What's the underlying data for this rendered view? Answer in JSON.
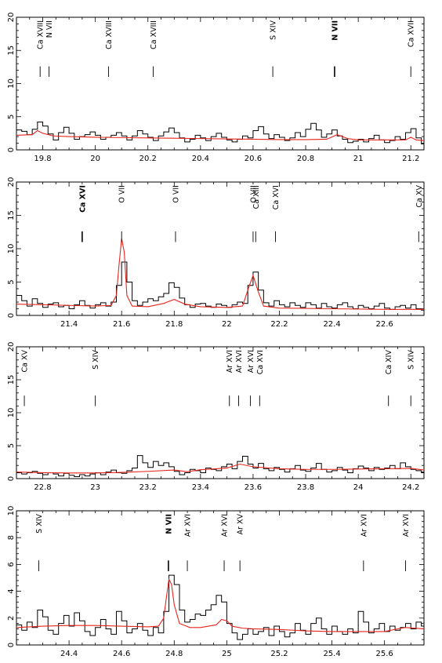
{
  "chart_data": [
    {
      "type": "line",
      "panel": 1,
      "xlim": [
        19.7,
        21.25
      ],
      "ylim": [
        0,
        20
      ],
      "xticks": [
        19.8,
        20,
        20.2,
        20.4,
        20.6,
        20.8,
        21,
        21.2
      ],
      "yticks": [
        0,
        5,
        10,
        15,
        20
      ],
      "grid": false,
      "series": [
        {
          "style": "histogram-black",
          "x": [
            19.7,
            19.72,
            19.74,
            19.76,
            19.78,
            19.8,
            19.82,
            19.84,
            19.86,
            19.88,
            19.9,
            19.92,
            19.94,
            19.96,
            19.98,
            20.0,
            20.02,
            20.04,
            20.06,
            20.08,
            20.1,
            20.12,
            20.14,
            20.16,
            20.18,
            20.2,
            20.22,
            20.24,
            20.26,
            20.28,
            20.3,
            20.32,
            20.34,
            20.36,
            20.38,
            20.4,
            20.42,
            20.44,
            20.46,
            20.48,
            20.5,
            20.52,
            20.54,
            20.56,
            20.58,
            20.6,
            20.62,
            20.64,
            20.66,
            20.68,
            20.7,
            20.72,
            20.74,
            20.76,
            20.78,
            20.8,
            20.82,
            20.84,
            20.86,
            20.88,
            20.9,
            20.92,
            20.94,
            20.96,
            20.98,
            21.0,
            21.02,
            21.04,
            21.06,
            21.08,
            21.1,
            21.12,
            21.14,
            21.16,
            21.18,
            21.2,
            21.22,
            21.24
          ],
          "y": [
            3.0,
            2.8,
            2.3,
            3.1,
            4.2,
            3.6,
            2.4,
            1.5,
            2.6,
            3.4,
            2.5,
            1.6,
            2.0,
            2.3,
            2.7,
            2.2,
            1.6,
            1.9,
            2.2,
            2.6,
            2.1,
            1.5,
            2.1,
            2.9,
            2.4,
            1.9,
            1.4,
            2.1,
            2.7,
            3.3,
            2.6,
            1.8,
            1.2,
            1.6,
            2.2,
            1.8,
            1.4,
            2.0,
            2.5,
            1.9,
            1.5,
            1.2,
            1.6,
            2.1,
            1.8,
            2.9,
            3.5,
            2.4,
            1.7,
            2.3,
            1.9,
            1.4,
            1.8,
            2.6,
            2.0,
            3.1,
            4.0,
            3.0,
            1.9,
            2.4,
            3.0,
            2.1,
            1.6,
            1.1,
            1.3,
            1.6,
            1.2,
            1.7,
            2.2,
            1.5,
            1.1,
            1.4,
            2.0,
            1.6,
            2.6,
            3.2,
            1.8,
            0.9
          ]
        },
        {
          "style": "line-red",
          "x": [
            19.7,
            19.76,
            19.78,
            19.8,
            19.84,
            19.9,
            20.0,
            20.1,
            20.2,
            20.3,
            20.4,
            20.5,
            20.6,
            20.7,
            20.8,
            20.88,
            20.92,
            20.96,
            21.0,
            21.1,
            21.18,
            21.2,
            21.22,
            21.25
          ],
          "y": [
            2.2,
            2.3,
            2.9,
            2.5,
            2.1,
            2.0,
            1.9,
            1.85,
            1.8,
            1.75,
            1.7,
            1.65,
            1.6,
            1.55,
            1.55,
            1.6,
            2.3,
            1.7,
            1.5,
            1.5,
            1.5,
            1.9,
            1.5,
            1.4
          ]
        }
      ],
      "annotations": [
        {
          "text": "Ca XVIII",
          "x": 19.79
        },
        {
          "text": "N VII",
          "x": 19.824
        },
        {
          "text": "Ca XVIII",
          "x": 20.05
        },
        {
          "text": "Ca XVIII",
          "x": 20.22
        },
        {
          "text": "S XIV",
          "x": 20.675
        },
        {
          "text": "N VII",
          "x": 20.91,
          "bold": true
        },
        {
          "text": "Ca XVII",
          "x": 21.2
        }
      ]
    },
    {
      "type": "line",
      "panel": 2,
      "xlim": [
        21.2,
        22.75
      ],
      "ylim": [
        0,
        20
      ],
      "xticks": [
        21.4,
        21.6,
        21.8,
        22,
        22.2,
        22.4,
        22.6
      ],
      "yticks": [
        0,
        5,
        10,
        15,
        20
      ],
      "grid": false,
      "series": [
        {
          "style": "histogram-black",
          "x": [
            21.2,
            21.22,
            21.24,
            21.26,
            21.28,
            21.3,
            21.32,
            21.34,
            21.36,
            21.38,
            21.4,
            21.42,
            21.44,
            21.46,
            21.48,
            21.5,
            21.52,
            21.54,
            21.56,
            21.58,
            21.6,
            21.62,
            21.64,
            21.66,
            21.68,
            21.7,
            21.72,
            21.74,
            21.76,
            21.78,
            21.8,
            21.82,
            21.84,
            21.86,
            21.88,
            21.9,
            21.92,
            21.94,
            21.96,
            21.98,
            22.0,
            22.02,
            22.04,
            22.06,
            22.08,
            22.1,
            22.12,
            22.14,
            22.16,
            22.18,
            22.2,
            22.22,
            22.24,
            22.26,
            22.28,
            22.3,
            22.32,
            22.34,
            22.36,
            22.38,
            22.4,
            22.42,
            22.44,
            22.46,
            22.48,
            22.5,
            22.52,
            22.54,
            22.56,
            22.58,
            22.6,
            22.62,
            22.64,
            22.66,
            22.68,
            22.7,
            22.72,
            22.74
          ],
          "y": [
            3.0,
            2.2,
            1.4,
            2.5,
            1.8,
            1.2,
            1.7,
            1.9,
            1.3,
            1.5,
            1.0,
            1.6,
            2.2,
            1.5,
            1.1,
            1.6,
            1.9,
            1.4,
            2.0,
            4.5,
            8.0,
            5.0,
            2.2,
            1.5,
            2.0,
            2.5,
            2.2,
            2.8,
            3.3,
            4.9,
            4.2,
            2.6,
            1.6,
            1.2,
            1.7,
            1.8,
            1.4,
            1.2,
            1.7,
            1.5,
            1.2,
            1.6,
            2.0,
            1.8,
            4.5,
            6.5,
            3.8,
            1.9,
            1.4,
            2.2,
            1.6,
            1.3,
            1.9,
            1.5,
            1.2,
            1.9,
            1.6,
            1.1,
            1.8,
            1.3,
            1.1,
            1.6,
            1.9,
            1.3,
            1.0,
            1.5,
            1.2,
            1.0,
            1.4,
            1.8,
            1.1,
            0.9,
            1.3,
            1.5,
            1.1,
            1.6,
            1.0,
            0.8
          ]
        },
        {
          "style": "line-red",
          "x": [
            21.2,
            21.4,
            21.5,
            21.56,
            21.58,
            21.59,
            21.6,
            21.61,
            21.62,
            21.64,
            21.7,
            21.76,
            21.8,
            21.84,
            21.9,
            22.0,
            22.06,
            22.08,
            22.1,
            22.12,
            22.14,
            22.2,
            22.4,
            22.6,
            22.75
          ],
          "y": [
            1.7,
            1.5,
            1.4,
            1.5,
            3.0,
            7.5,
            11.5,
            9.5,
            3.0,
            1.4,
            1.3,
            1.8,
            2.4,
            1.7,
            1.3,
            1.2,
            1.4,
            3.8,
            6.0,
            3.5,
            1.4,
            1.1,
            1.0,
            0.9,
            0.9
          ]
        }
      ],
      "annotations": [
        {
          "text": "Ca XVI",
          "x": 21.45,
          "bold": true
        },
        {
          "text": "O VII",
          "x": 21.6
        },
        {
          "text": "O VII",
          "x": 21.805
        },
        {
          "text": "O VII",
          "x": 22.1
        },
        {
          "text": "Ca XIII",
          "x": 22.11
        },
        {
          "text": "Ca XVI",
          "x": 22.185
        },
        {
          "text": "Ca XV",
          "x": 22.73
        }
      ]
    },
    {
      "type": "line",
      "panel": 3,
      "xlim": [
        22.7,
        24.25
      ],
      "ylim": [
        0,
        20
      ],
      "xticks": [
        22.8,
        23,
        23.2,
        23.4,
        23.6,
        23.8,
        24,
        24.2
      ],
      "yticks": [
        0,
        5,
        10,
        15,
        20
      ],
      "grid": false,
      "series": [
        {
          "style": "histogram-black",
          "x": [
            22.7,
            22.72,
            22.74,
            22.76,
            22.78,
            22.8,
            22.82,
            22.84,
            22.86,
            22.88,
            22.9,
            22.92,
            22.94,
            22.96,
            22.98,
            23.0,
            23.02,
            23.04,
            23.06,
            23.08,
            23.1,
            23.12,
            23.14,
            23.16,
            23.18,
            23.2,
            23.22,
            23.24,
            23.26,
            23.28,
            23.3,
            23.32,
            23.34,
            23.36,
            23.38,
            23.4,
            23.42,
            23.44,
            23.46,
            23.48,
            23.5,
            23.52,
            23.54,
            23.56,
            23.58,
            23.6,
            23.62,
            23.64,
            23.66,
            23.68,
            23.7,
            23.72,
            23.74,
            23.76,
            23.78,
            23.8,
            23.82,
            23.84,
            23.86,
            23.88,
            23.9,
            23.92,
            23.94,
            23.96,
            23.98,
            24.0,
            24.02,
            24.04,
            24.06,
            24.08,
            24.1,
            24.12,
            24.14,
            24.16,
            24.18,
            24.2,
            24.22,
            24.24
          ],
          "y": [
            0.9,
            0.7,
            0.9,
            1.1,
            0.8,
            0.6,
            0.9,
            0.7,
            0.4,
            0.8,
            0.5,
            0.3,
            0.6,
            0.4,
            0.7,
            0.9,
            0.6,
            1.0,
            1.3,
            0.9,
            0.8,
            1.2,
            1.6,
            3.5,
            2.4,
            1.7,
            2.6,
            2.0,
            2.4,
            1.8,
            1.1,
            0.6,
            0.9,
            1.4,
            1.2,
            0.9,
            1.6,
            1.4,
            1.2,
            1.8,
            2.2,
            1.5,
            2.6,
            3.4,
            2.2,
            1.6,
            2.3,
            1.5,
            1.2,
            1.7,
            1.4,
            1.0,
            1.5,
            2.0,
            1.3,
            1.1,
            1.6,
            2.3,
            1.4,
            1.0,
            1.2,
            1.7,
            1.3,
            0.9,
            1.5,
            1.9,
            1.6,
            1.2,
            1.7,
            1.4,
            1.6,
            2.0,
            1.5,
            2.4,
            1.8,
            1.4,
            1.2,
            0.9
          ]
        },
        {
          "style": "line-red",
          "x": [
            22.7,
            22.8,
            22.9,
            23.0,
            23.1,
            23.2,
            23.3,
            23.35,
            23.4,
            23.5,
            23.55,
            23.6,
            23.7,
            23.8,
            23.9,
            24.0,
            24.1,
            24.2,
            24.25
          ],
          "y": [
            1.0,
            0.9,
            0.85,
            0.85,
            0.95,
            1.1,
            1.3,
            1.05,
            1.35,
            1.6,
            2.2,
            1.8,
            1.5,
            1.4,
            1.4,
            1.45,
            1.5,
            1.55,
            1.3
          ]
        }
      ],
      "annotations": [
        {
          "text": "Ca XV",
          "x": 22.73
        },
        {
          "text": "S XIV",
          "x": 23.0
        },
        {
          "text": "Ar XVI",
          "x": 23.51
        },
        {
          "text": "Ar XVI",
          "x": 23.545
        },
        {
          "text": "Ar XVI",
          "x": 23.59
        },
        {
          "text": "Ca XVI",
          "x": 23.625
        },
        {
          "text": "Ca XIV",
          "x": 24.115
        },
        {
          "text": "S XIV",
          "x": 24.2
        }
      ]
    },
    {
      "type": "line",
      "panel": 4,
      "xlim": [
        24.2,
        25.75
      ],
      "ylim": [
        0,
        10
      ],
      "xticks": [
        24.4,
        24.6,
        24.8,
        25,
        25.2,
        25.4,
        25.6
      ],
      "yticks": [
        0,
        2,
        4,
        6,
        8,
        10
      ],
      "grid": false,
      "series": [
        {
          "style": "histogram-black",
          "x": [
            24.2,
            24.22,
            24.24,
            24.26,
            24.28,
            24.3,
            24.32,
            24.34,
            24.36,
            24.38,
            24.4,
            24.42,
            24.44,
            24.46,
            24.48,
            24.5,
            24.52,
            24.54,
            24.56,
            24.58,
            24.6,
            24.62,
            24.64,
            24.66,
            24.68,
            24.7,
            24.72,
            24.74,
            24.76,
            24.78,
            24.8,
            24.82,
            24.84,
            24.86,
            24.88,
            24.9,
            24.92,
            24.94,
            24.96,
            24.98,
            25.0,
            25.02,
            25.04,
            25.06,
            25.08,
            25.1,
            25.12,
            25.14,
            25.16,
            25.18,
            25.2,
            25.22,
            25.24,
            25.26,
            25.28,
            25.3,
            25.32,
            25.34,
            25.36,
            25.38,
            25.4,
            25.42,
            25.44,
            25.46,
            25.48,
            25.5,
            25.52,
            25.54,
            25.56,
            25.58,
            25.6,
            25.62,
            25.64,
            25.66,
            25.68,
            25.7,
            25.72,
            25.74
          ],
          "y": [
            1.5,
            1.1,
            1.7,
            1.3,
            2.6,
            2.1,
            1.1,
            0.8,
            1.6,
            2.2,
            1.4,
            2.4,
            1.8,
            1.0,
            0.7,
            1.3,
            1.9,
            1.2,
            0.8,
            2.5,
            1.8,
            0.9,
            1.2,
            1.6,
            1.1,
            0.7,
            1.3,
            0.9,
            2.5,
            5.2,
            4.5,
            2.6,
            1.7,
            1.9,
            2.3,
            2.2,
            2.6,
            3.0,
            3.7,
            3.2,
            1.6,
            0.9,
            0.4,
            0.8,
            1.2,
            0.8,
            1.0,
            1.3,
            0.7,
            1.4,
            1.0,
            0.6,
            0.9,
            1.6,
            1.1,
            0.8,
            1.6,
            2.0,
            1.2,
            0.8,
            1.4,
            1.0,
            0.8,
            1.2,
            0.9,
            2.5,
            1.7,
            0.9,
            1.2,
            1.6,
            1.0,
            1.4,
            1.1,
            1.3,
            1.6,
            1.2,
            1.7,
            1.4
          ]
        },
        {
          "style": "line-red",
          "x": [
            24.2,
            24.3,
            24.4,
            24.5,
            24.6,
            24.7,
            24.74,
            24.76,
            24.77,
            24.78,
            24.79,
            24.8,
            24.82,
            24.86,
            24.9,
            24.96,
            24.98,
            25.0,
            25.02,
            25.06,
            25.1,
            25.2,
            25.3,
            25.4,
            25.5,
            25.6,
            25.65,
            25.68,
            25.75
          ],
          "y": [
            1.3,
            1.4,
            1.45,
            1.45,
            1.4,
            1.35,
            1.4,
            2.0,
            3.5,
            4.9,
            4.5,
            3.0,
            1.6,
            1.3,
            1.3,
            1.5,
            1.9,
            1.8,
            1.4,
            1.25,
            1.2,
            1.15,
            1.05,
            1.0,
            1.0,
            1.0,
            1.2,
            1.3,
            1.2
          ]
        }
      ],
      "annotations": [
        {
          "text": "S XIV",
          "x": 24.285
        },
        {
          "text": "N VII",
          "x": 24.778,
          "bold": true
        },
        {
          "text": "Ar XVI",
          "x": 24.85
        },
        {
          "text": "Ar XVI",
          "x": 24.99
        },
        {
          "text": "Ar XV",
          "x": 25.05
        },
        {
          "text": "Ar XVI",
          "x": 25.52
        },
        {
          "text": "Ar XVI",
          "x": 25.68
        }
      ]
    }
  ]
}
